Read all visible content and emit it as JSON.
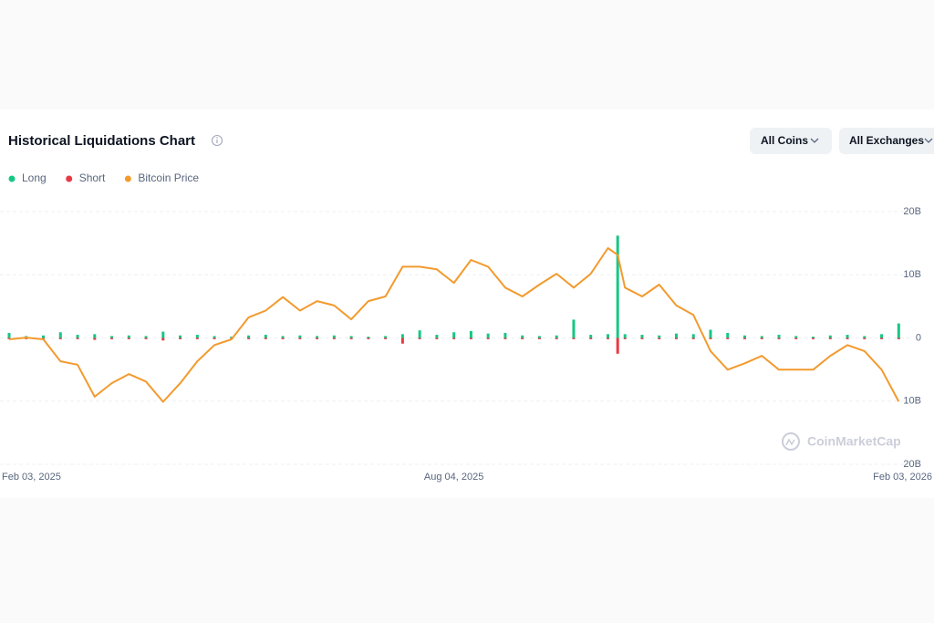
{
  "toolbar": {
    "filters": [
      "All Coins",
      "All Exchanges"
    ]
  },
  "watermark": "CoinMarketCap",
  "chart_data": {
    "type": "bar",
    "title": "Historical Liquidations Chart",
    "x": [
      "2025-02-03",
      "2025-02-10",
      "2025-02-17",
      "2025-02-24",
      "2025-03-03",
      "2025-03-10",
      "2025-03-17",
      "2025-03-24",
      "2025-03-31",
      "2025-04-07",
      "2025-04-14",
      "2025-04-21",
      "2025-04-28",
      "2025-05-05",
      "2025-05-12",
      "2025-05-19",
      "2025-05-26",
      "2025-06-02",
      "2025-06-09",
      "2025-06-16",
      "2025-06-23",
      "2025-06-30",
      "2025-07-07",
      "2025-07-14",
      "2025-07-21",
      "2025-07-28",
      "2025-08-04",
      "2025-08-11",
      "2025-08-18",
      "2025-08-25",
      "2025-09-01",
      "2025-09-08",
      "2025-09-15",
      "2025-09-22",
      "2025-09-29",
      "2025-10-06",
      "2025-10-10",
      "2025-10-13",
      "2025-10-20",
      "2025-10-27",
      "2025-11-03",
      "2025-11-10",
      "2025-11-17",
      "2025-11-24",
      "2025-12-01",
      "2025-12-08",
      "2025-12-15",
      "2025-12-22",
      "2025-12-29",
      "2026-01-05",
      "2026-01-12",
      "2026-01-19",
      "2026-01-26",
      "2026-02-02"
    ],
    "series": [
      {
        "name": "Long",
        "color": "#16c784",
        "type": "bar",
        "values": [
          0.8,
          0.3,
          0.4,
          0.9,
          0.5,
          0.6,
          0.3,
          0.4,
          0.3,
          1.0,
          0.4,
          0.5,
          0.3,
          0.2,
          0.4,
          0.5,
          0.3,
          0.4,
          0.3,
          0.4,
          0.3,
          0.2,
          0.3,
          0.6,
          1.2,
          0.5,
          0.9,
          1.1,
          0.7,
          0.8,
          0.4,
          0.3,
          0.4,
          2.9,
          0.5,
          0.6,
          16.2,
          0.6,
          0.5,
          0.4,
          0.7,
          0.6,
          1.3,
          0.8,
          0.4,
          0.3,
          0.5,
          0.3,
          0.2,
          0.4,
          0.5,
          0.3,
          0.6,
          2.3
        ]
      },
      {
        "name": "Short",
        "color": "#ea3943",
        "type": "bar",
        "values": [
          -0.2,
          -0.2,
          -0.2,
          -0.2,
          -0.2,
          -0.3,
          -0.2,
          -0.2,
          -0.2,
          -0.4,
          -0.2,
          -0.2,
          -0.2,
          -0.2,
          -0.2,
          -0.2,
          -0.2,
          -0.2,
          -0.2,
          -0.2,
          -0.2,
          -0.2,
          -0.2,
          -0.9,
          -0.2,
          -0.2,
          -0.2,
          -0.2,
          -0.2,
          -0.2,
          -0.2,
          -0.2,
          -0.2,
          -0.2,
          -0.2,
          -0.2,
          -2.5,
          -0.2,
          -0.2,
          -0.2,
          -0.2,
          -0.2,
          -0.2,
          -0.2,
          -0.2,
          -0.2,
          -0.2,
          -0.2,
          -0.2,
          -0.2,
          -0.2,
          -0.2,
          -0.2,
          -0.2
        ]
      },
      {
        "name": "Bitcoin Price",
        "color": "#f39a2e",
        "type": "line",
        "axis": "y2",
        "values": [
          96500,
          97000,
          96500,
          90000,
          89000,
          79500,
          83500,
          86200,
          84000,
          78000,
          83500,
          90000,
          94800,
          96500,
          103000,
          105000,
          109000,
          105000,
          107800,
          106500,
          102400,
          107800,
          109200,
          118000,
          118000,
          117200,
          113200,
          120000,
          118000,
          111800,
          109200,
          112700,
          115900,
          111800,
          115900,
          123500,
          121500,
          111800,
          109200,
          112700,
          106500,
          103700,
          93000,
          87500,
          89400,
          91600,
          87500,
          87500,
          87500,
          91600,
          94800,
          93000,
          87500,
          78100
        ]
      }
    ],
    "xlim": [
      "2025-02-03",
      "2026-02-03"
    ],
    "xticks": [
      {
        "value": "2025-02-03",
        "label": "Feb 03, 2025"
      },
      {
        "value": "2025-08-04",
        "label": "Aug 04, 2025"
      },
      {
        "value": "2026-02-03",
        "label": "Feb 03, 2026"
      }
    ],
    "ylim": [
      -20,
      20
    ],
    "yticks": [
      {
        "value": 20,
        "label": "20B"
      },
      {
        "value": 10,
        "label": "10B"
      },
      0,
      {
        "value": -10,
        "label": "10B"
      },
      {
        "value": -20,
        "label": "20B"
      }
    ],
    "y2lim": [
      59500,
      134300
    ],
    "grid": true,
    "legend": "top-left"
  }
}
